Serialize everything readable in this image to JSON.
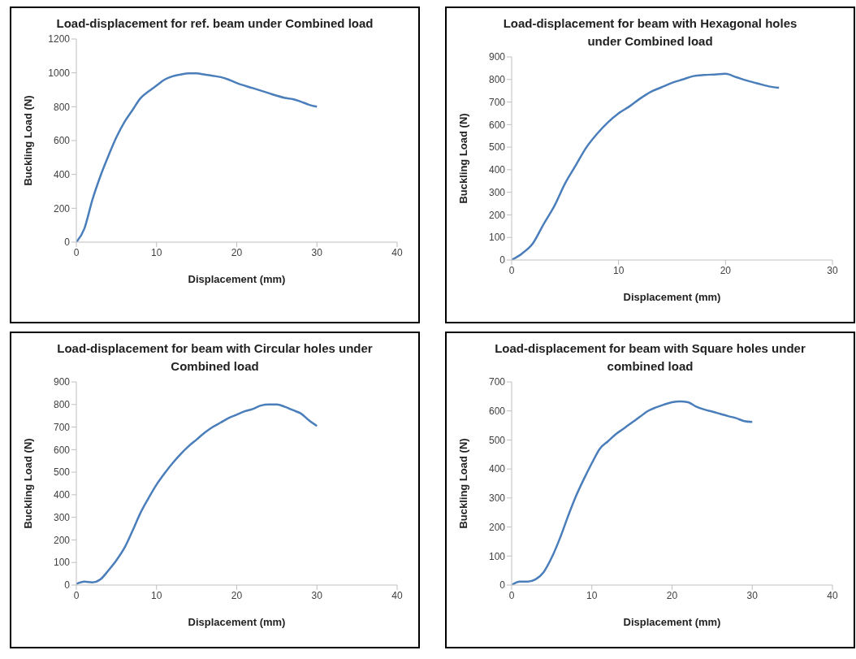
{
  "chart_data": [
    {
      "type": "line",
      "title": "Load-displacement for ref. beam under Combined load",
      "xlabel": "Displacement (mm)",
      "ylabel": "Buckling Load (N)",
      "xlim": [
        0,
        40
      ],
      "xticks": [
        0,
        10,
        20,
        30,
        40
      ],
      "ylim": [
        0,
        1200
      ],
      "yticks": [
        0,
        200,
        400,
        600,
        800,
        1000,
        1200
      ],
      "grid": false,
      "legend": false,
      "marker": "none",
      "x": [
        0,
        1,
        2,
        3,
        4,
        5,
        6,
        7,
        8,
        9,
        10,
        11,
        12,
        13,
        14,
        15,
        16,
        17,
        18,
        19,
        20,
        22,
        24,
        25,
        26,
        27,
        28,
        29,
        30
      ],
      "series": [
        {
          "color": "#4a7ebb",
          "values": [
            0,
            80,
            250,
            390,
            510,
            620,
            710,
            780,
            850,
            890,
            925,
            960,
            980,
            990,
            997,
            997,
            990,
            983,
            975,
            960,
            940,
            910,
            880,
            865,
            852,
            845,
            830,
            812,
            800
          ]
        }
      ]
    },
    {
      "type": "line",
      "title": "Load-displacement for beam with Hexagonal holes under Combined load",
      "xlabel": "Displacement (mm)",
      "ylabel": "Buckling Load (N)",
      "xlim": [
        0,
        30
      ],
      "xticks": [
        0,
        10,
        20,
        30
      ],
      "ylim": [
        0,
        900
      ],
      "yticks": [
        0,
        100,
        200,
        300,
        400,
        500,
        600,
        700,
        800,
        900
      ],
      "grid": false,
      "legend": false,
      "marker": "none",
      "x": [
        0,
        1,
        2,
        3,
        4,
        5,
        6,
        7,
        8,
        9,
        10,
        11,
        12,
        13,
        14,
        15,
        16,
        17,
        18,
        19,
        20,
        21,
        22,
        23,
        24,
        25
      ],
      "series": [
        {
          "color": "#4a7ebb",
          "values": [
            0,
            30,
            75,
            160,
            240,
            340,
            420,
            500,
            560,
            610,
            650,
            680,
            715,
            745,
            765,
            785,
            800,
            815,
            820,
            822,
            825,
            810,
            795,
            782,
            770,
            763
          ]
        }
      ]
    },
    {
      "type": "line",
      "title": "Load-displacement for beam with Circular holes under Combined load",
      "xlabel": "Displacement (mm)",
      "ylabel": "Buckling Load (N)",
      "xlim": [
        0,
        40
      ],
      "xticks": [
        0,
        10,
        20,
        30,
        40
      ],
      "ylim": [
        0,
        900
      ],
      "yticks": [
        0,
        100,
        200,
        300,
        400,
        500,
        600,
        700,
        800,
        900
      ],
      "grid": false,
      "legend": false,
      "marker": "none",
      "x": [
        0,
        1,
        2,
        3,
        4,
        5,
        6,
        7,
        8,
        9,
        10,
        11,
        12,
        13,
        14,
        15,
        16,
        17,
        18,
        19,
        20,
        21,
        22,
        23,
        24,
        25,
        26,
        27,
        28,
        29,
        30
      ],
      "series": [
        {
          "color": "#4a7ebb",
          "values": [
            5,
            15,
            12,
            25,
            65,
            110,
            165,
            240,
            320,
            385,
            445,
            495,
            540,
            580,
            615,
            645,
            675,
            700,
            720,
            740,
            755,
            770,
            780,
            795,
            800,
            800,
            790,
            775,
            760,
            730,
            705
          ]
        }
      ]
    },
    {
      "type": "line",
      "title": "Load-displacement for beam with Square holes under combined load",
      "xlabel": "Displacement (mm)",
      "ylabel": "Buckling Load (N)",
      "xlim": [
        0,
        40
      ],
      "xticks": [
        0,
        10,
        20,
        30,
        40
      ],
      "ylim": [
        0,
        700
      ],
      "yticks": [
        0,
        100,
        200,
        300,
        400,
        500,
        600,
        700
      ],
      "grid": false,
      "legend": false,
      "marker": "none",
      "x": [
        0,
        1,
        2,
        3,
        4,
        5,
        6,
        7,
        8,
        9,
        10,
        11,
        12,
        13,
        14,
        15,
        16,
        17,
        18,
        19,
        20,
        21,
        22,
        23,
        24,
        25,
        26,
        27,
        28,
        29,
        30
      ],
      "series": [
        {
          "color": "#4a7ebb",
          "values": [
            0,
            12,
            12,
            20,
            45,
            95,
            160,
            235,
            305,
            365,
            420,
            470,
            495,
            520,
            540,
            560,
            580,
            600,
            612,
            622,
            630,
            633,
            630,
            615,
            605,
            598,
            590,
            582,
            575,
            565,
            562
          ]
        }
      ]
    }
  ]
}
